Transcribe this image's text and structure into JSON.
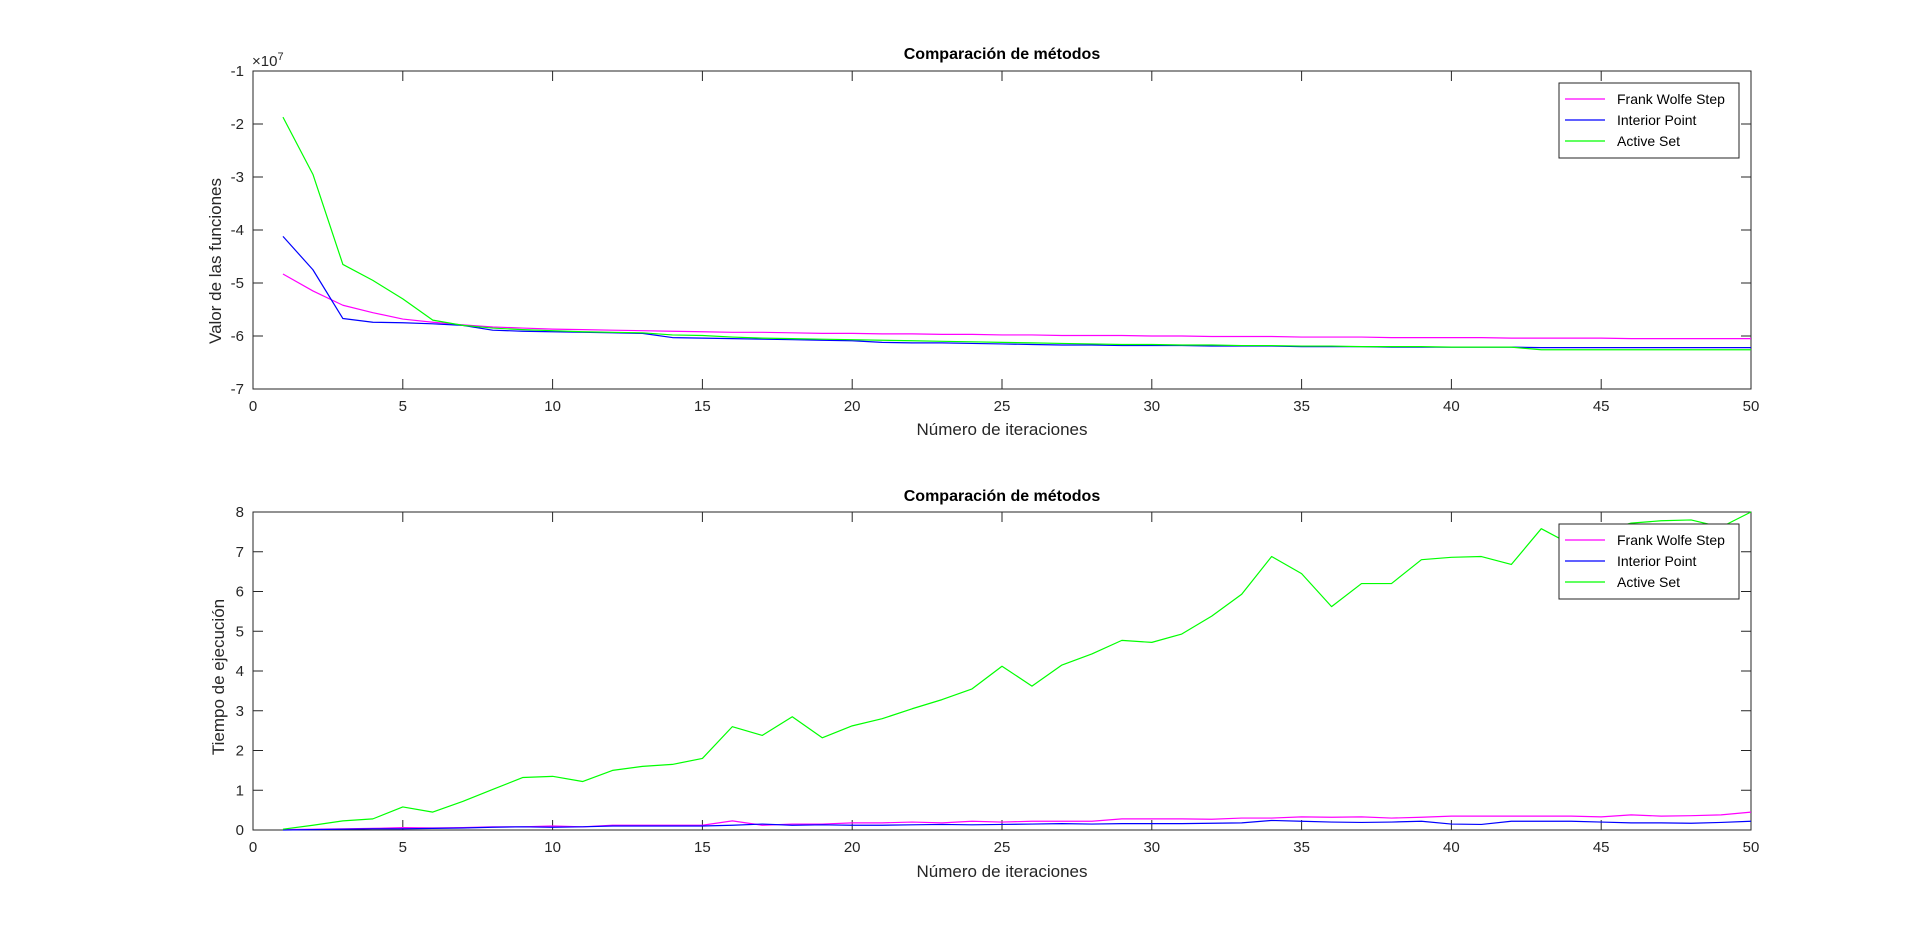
{
  "chart_data": [
    {
      "type": "line",
      "title": "Comparación de métodos",
      "xlabel": "Número de iteraciones",
      "ylabel": "Valor de las funciones",
      "y_exponent_label": "×10",
      "y_exponent_power": "7",
      "xlim": [
        0,
        50
      ],
      "ylim": [
        -7,
        -1
      ],
      "xticks": [
        0,
        5,
        10,
        15,
        20,
        25,
        30,
        35,
        40,
        45,
        50
      ],
      "yticks": [
        -7,
        -6,
        -5,
        -4,
        -3,
        -2,
        -1
      ],
      "legend": "top-right",
      "grid": false,
      "x": [
        1,
        2,
        3,
        4,
        5,
        6,
        7,
        8,
        9,
        10,
        11,
        12,
        13,
        14,
        15,
        16,
        17,
        18,
        19,
        20,
        21,
        22,
        23,
        24,
        25,
        26,
        27,
        28,
        29,
        30,
        31,
        32,
        33,
        34,
        35,
        36,
        37,
        38,
        39,
        40,
        41,
        42,
        43,
        44,
        45,
        46,
        47,
        48,
        49,
        50
      ],
      "series": [
        {
          "name": "Frank Wolfe Step",
          "color": "#ff00ff",
          "values": [
            -4.83,
            -5.15,
            -5.42,
            -5.56,
            -5.68,
            -5.74,
            -5.79,
            -5.83,
            -5.85,
            -5.87,
            -5.88,
            -5.89,
            -5.9,
            -5.91,
            -5.92,
            -5.93,
            -5.93,
            -5.94,
            -5.95,
            -5.95,
            -5.96,
            -5.96,
            -5.97,
            -5.97,
            -5.98,
            -5.98,
            -5.99,
            -5.99,
            -5.99,
            -6.0,
            -6.0,
            -6.01,
            -6.01,
            -6.01,
            -6.02,
            -6.02,
            -6.02,
            -6.03,
            -6.03,
            -6.03,
            -6.03,
            -6.04,
            -6.04,
            -6.04,
            -6.04,
            -6.05,
            -6.05,
            -6.05,
            -6.05,
            -6.05
          ]
        },
        {
          "name": "Interior Point",
          "color": "#0000ff",
          "values": [
            -4.12,
            -4.75,
            -5.67,
            -5.74,
            -5.75,
            -5.77,
            -5.8,
            -5.89,
            -5.91,
            -5.92,
            -5.93,
            -5.94,
            -5.95,
            -6.03,
            -6.04,
            -6.05,
            -6.06,
            -6.07,
            -6.08,
            -6.09,
            -6.12,
            -6.13,
            -6.13,
            -6.14,
            -6.15,
            -6.16,
            -6.17,
            -6.17,
            -6.18,
            -6.18,
            -6.18,
            -6.19,
            -6.19,
            -6.19,
            -6.2,
            -6.2,
            -6.2,
            -6.21,
            -6.21,
            -6.21,
            -6.21,
            -6.21,
            -6.22,
            -6.22,
            -6.22,
            -6.22,
            -6.22,
            -6.22,
            -6.22,
            -6.22
          ]
        },
        {
          "name": "Active Set",
          "color": "#00ff00",
          "values": [
            -1.87,
            -2.95,
            -4.65,
            -4.95,
            -5.3,
            -5.7,
            -5.8,
            -5.85,
            -5.88,
            -5.9,
            -5.92,
            -5.93,
            -5.94,
            -5.98,
            -5.99,
            -6.02,
            -6.04,
            -6.05,
            -6.06,
            -6.07,
            -6.08,
            -6.09,
            -6.1,
            -6.11,
            -6.12,
            -6.13,
            -6.14,
            -6.15,
            -6.16,
            -6.16,
            -6.17,
            -6.17,
            -6.18,
            -6.18,
            -6.19,
            -6.19,
            -6.2,
            -6.2,
            -6.2,
            -6.21,
            -6.21,
            -6.21,
            -6.26,
            -6.26,
            -6.26,
            -6.26,
            -6.26,
            -6.26,
            -6.26,
            -6.26
          ]
        }
      ]
    },
    {
      "type": "line",
      "title": "Comparación de métodos",
      "xlabel": "Número de iteraciones",
      "ylabel": "Tiempo de ejecución",
      "xlim": [
        0,
        50
      ],
      "ylim": [
        0,
        8
      ],
      "xticks": [
        0,
        5,
        10,
        15,
        20,
        25,
        30,
        35,
        40,
        45,
        50
      ],
      "yticks": [
        0,
        1,
        2,
        3,
        4,
        5,
        6,
        7,
        8
      ],
      "legend": "top-right",
      "grid": false,
      "x": [
        1,
        2,
        3,
        4,
        5,
        6,
        7,
        8,
        9,
        10,
        11,
        12,
        13,
        14,
        15,
        16,
        17,
        18,
        19,
        20,
        21,
        22,
        23,
        24,
        25,
        26,
        27,
        28,
        29,
        30,
        31,
        32,
        33,
        34,
        35,
        36,
        37,
        38,
        39,
        40,
        41,
        42,
        43,
        44,
        45,
        46,
        47,
        48,
        49,
        50
      ],
      "series": [
        {
          "name": "Frank Wolfe Step",
          "color": "#ff00ff",
          "values": [
            0.01,
            0.02,
            0.03,
            0.04,
            0.06,
            0.05,
            0.06,
            0.08,
            0.08,
            0.1,
            0.08,
            0.12,
            0.12,
            0.12,
            0.12,
            0.23,
            0.12,
            0.15,
            0.15,
            0.18,
            0.18,
            0.2,
            0.18,
            0.22,
            0.2,
            0.22,
            0.22,
            0.22,
            0.28,
            0.28,
            0.28,
            0.27,
            0.3,
            0.3,
            0.33,
            0.32,
            0.33,
            0.3,
            0.32,
            0.35,
            0.35,
            0.35,
            0.35,
            0.35,
            0.33,
            0.38,
            0.35,
            0.36,
            0.38,
            0.45
          ]
        },
        {
          "name": "Interior Point",
          "color": "#0000ff",
          "values": [
            0.0,
            0.01,
            0.02,
            0.03,
            0.03,
            0.04,
            0.05,
            0.07,
            0.08,
            0.07,
            0.08,
            0.1,
            0.1,
            0.1,
            0.1,
            0.12,
            0.15,
            0.12,
            0.13,
            0.12,
            0.12,
            0.13,
            0.14,
            0.13,
            0.14,
            0.15,
            0.16,
            0.15,
            0.16,
            0.16,
            0.16,
            0.17,
            0.18,
            0.24,
            0.22,
            0.2,
            0.19,
            0.2,
            0.22,
            0.15,
            0.14,
            0.22,
            0.22,
            0.22,
            0.2,
            0.18,
            0.18,
            0.17,
            0.19,
            0.22
          ]
        },
        {
          "name": "Active Set",
          "color": "#00ff00",
          "values": [
            0.02,
            0.12,
            0.23,
            0.28,
            0.58,
            0.45,
            0.72,
            1.02,
            1.32,
            1.35,
            1.22,
            1.5,
            1.6,
            1.65,
            1.8,
            2.6,
            2.38,
            2.85,
            2.32,
            2.62,
            2.8,
            3.05,
            3.28,
            3.55,
            4.12,
            3.62,
            4.15,
            4.43,
            4.77,
            4.72,
            4.93,
            5.38,
            5.93,
            6.88,
            6.45,
            5.62,
            6.2,
            6.2,
            6.8,
            6.86,
            6.88,
            6.68,
            7.58,
            7.18,
            7.52,
            7.72,
            7.78,
            7.8,
            7.62,
            8.0
          ]
        }
      ]
    }
  ]
}
